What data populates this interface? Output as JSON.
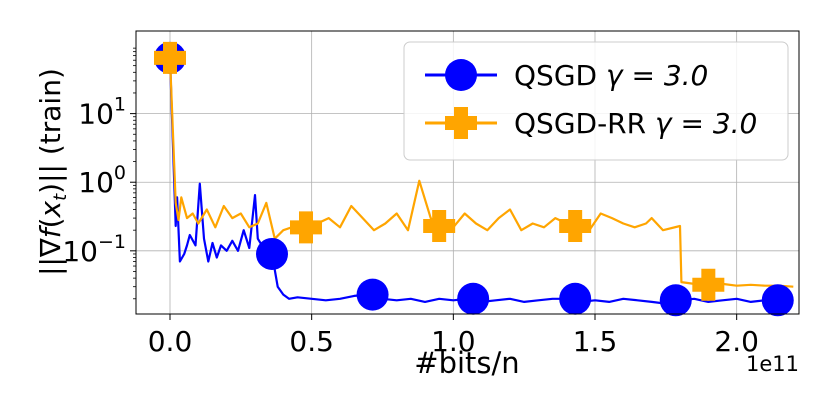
{
  "chart_data": {
    "type": "line",
    "xlabel": "#bits/n",
    "x_offset_label": "1e11",
    "ylabel": "||∇f(x_t)|| (train)",
    "yscale": "log",
    "xlim": [
      -0.12,
      2.22
    ],
    "ylim": [
      0.012,
      160
    ],
    "grid": true,
    "legend_position": "top-right",
    "x_ticks": [
      {
        "value": 0.0,
        "label": "0.0"
      },
      {
        "value": 0.5,
        "label": "0.5"
      },
      {
        "value": 1.0,
        "label": "1.0"
      },
      {
        "value": 1.5,
        "label": "1.5"
      },
      {
        "value": 2.0,
        "label": "2.0"
      }
    ],
    "y_ticks": [
      {
        "value": 0.1,
        "base": "10",
        "exp": "−1"
      },
      {
        "value": 1,
        "base": "10",
        "exp": "0"
      },
      {
        "value": 10,
        "base": "10",
        "exp": "1"
      }
    ],
    "series": [
      {
        "name": "QSGD γ = 3.0",
        "color": "#0000ff",
        "marker": "circle",
        "x": [
          0.0,
          0.02,
          0.025,
          0.035,
          0.05,
          0.06,
          0.07,
          0.09,
          0.105,
          0.12,
          0.135,
          0.15,
          0.165,
          0.18,
          0.2,
          0.22,
          0.24,
          0.26,
          0.28,
          0.3,
          0.31,
          0.33,
          0.36,
          0.38,
          0.4,
          0.42,
          0.45,
          0.5,
          0.55,
          0.6,
          0.65,
          0.7,
          0.75,
          0.8,
          0.85,
          0.9,
          0.95,
          1.0,
          1.05,
          1.1,
          1.15,
          1.2,
          1.25,
          1.3,
          1.35,
          1.4,
          1.45,
          1.5,
          1.55,
          1.6,
          1.65,
          1.7,
          1.75,
          1.8,
          1.85,
          1.9,
          1.95,
          2.0,
          2.05,
          2.1,
          2.15,
          2.2
        ],
        "y": [
          65,
          0.23,
          0.6,
          0.07,
          0.09,
          0.12,
          0.17,
          0.12,
          0.95,
          0.15,
          0.07,
          0.13,
          0.08,
          0.12,
          0.1,
          0.14,
          0.1,
          0.2,
          0.11,
          0.65,
          0.15,
          0.11,
          0.09,
          0.03,
          0.023,
          0.02,
          0.021,
          0.02,
          0.019,
          0.02,
          0.022,
          0.023,
          0.02,
          0.019,
          0.02,
          0.018,
          0.02,
          0.019,
          0.02,
          0.018,
          0.019,
          0.02,
          0.018,
          0.019,
          0.02,
          0.02,
          0.018,
          0.019,
          0.018,
          0.02,
          0.019,
          0.018,
          0.017,
          0.019,
          0.02,
          0.018,
          0.019,
          0.02,
          0.018,
          0.019,
          0.02,
          0.019
        ],
        "marker_points": [
          [
            0.0,
            65
          ],
          [
            0.36,
            0.09
          ],
          [
            0.715,
            0.023
          ],
          [
            1.07,
            0.02
          ],
          [
            1.43,
            0.02
          ],
          [
            1.785,
            0.019
          ],
          [
            2.145,
            0.019
          ]
        ]
      },
      {
        "name": "QSGD-RR γ = 3.0",
        "color": "#ffa500",
        "marker": "plus",
        "x": [
          0.0,
          0.02,
          0.03,
          0.04,
          0.06,
          0.08,
          0.1,
          0.13,
          0.16,
          0.19,
          0.22,
          0.25,
          0.28,
          0.31,
          0.34,
          0.37,
          0.4,
          0.43,
          0.48,
          0.52,
          0.56,
          0.6,
          0.64,
          0.68,
          0.72,
          0.76,
          0.8,
          0.84,
          0.88,
          0.92,
          0.96,
          1.0,
          1.04,
          1.08,
          1.12,
          1.16,
          1.2,
          1.24,
          1.28,
          1.32,
          1.36,
          1.4,
          1.44,
          1.48,
          1.52,
          1.56,
          1.6,
          1.64,
          1.68,
          1.7,
          1.74,
          1.8,
          1.805,
          1.85,
          1.9,
          1.95,
          2.0,
          2.05,
          2.1,
          2.15,
          2.2
        ],
        "y": [
          65,
          0.5,
          0.28,
          0.6,
          0.3,
          0.35,
          0.25,
          0.4,
          0.22,
          0.45,
          0.3,
          0.35,
          0.22,
          0.25,
          0.5,
          0.15,
          0.2,
          0.22,
          0.22,
          0.25,
          0.3,
          0.22,
          0.45,
          0.3,
          0.2,
          0.25,
          0.35,
          0.2,
          1.05,
          0.3,
          0.22,
          0.22,
          0.35,
          0.25,
          0.2,
          0.3,
          0.4,
          0.2,
          0.25,
          0.22,
          0.3,
          0.25,
          0.22,
          0.2,
          0.35,
          0.3,
          0.25,
          0.22,
          0.25,
          0.3,
          0.2,
          0.23,
          0.035,
          0.033,
          0.032,
          0.033,
          0.031,
          0.032,
          0.031,
          0.031,
          0.03
        ],
        "marker_points": [
          [
            0.0,
            65
          ],
          [
            0.48,
            0.22
          ],
          [
            0.95,
            0.23
          ],
          [
            1.43,
            0.23
          ],
          [
            1.9,
            0.032
          ]
        ]
      }
    ]
  },
  "legend": {
    "entries": [
      {
        "text": "QSGD ",
        "math": "γ = 3.0"
      },
      {
        "text": "QSGD-RR ",
        "math": "γ = 3.0"
      }
    ]
  }
}
